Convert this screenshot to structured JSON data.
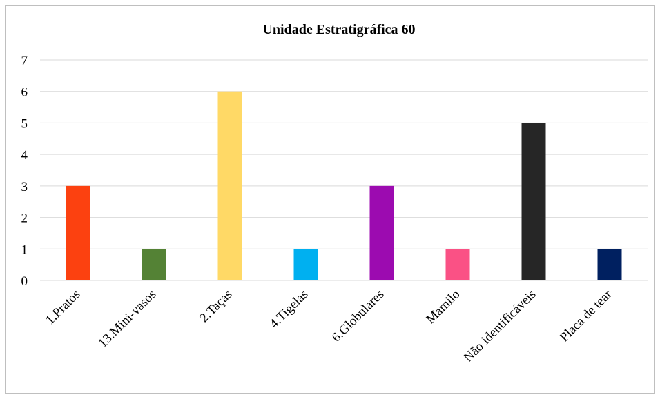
{
  "chart_data": {
    "type": "bar",
    "title": "Unidade Estratigráfica 60",
    "xlabel": "",
    "ylabel": "",
    "categories": [
      "1.Pratos",
      "13.Mini-vasos",
      "2.Taças",
      "4.Tigelas",
      "6.Globulares",
      "Mamilo",
      "Não identificáveis",
      "Placa de tear"
    ],
    "values": [
      3,
      1,
      6,
      1,
      3,
      1,
      5,
      1
    ],
    "colors": [
      "#fc4110",
      "#548235",
      "#ffd966",
      "#00b0f0",
      "#9c0bb0",
      "#fa5185",
      "#262626",
      "#002060"
    ],
    "ylim": [
      0,
      7
    ],
    "yticks": [
      "0",
      "1",
      "2",
      "3",
      "4",
      "5",
      "6",
      "7"
    ],
    "grid": true,
    "legend": "none",
    "gridline_color": "#d9d9d9"
  }
}
